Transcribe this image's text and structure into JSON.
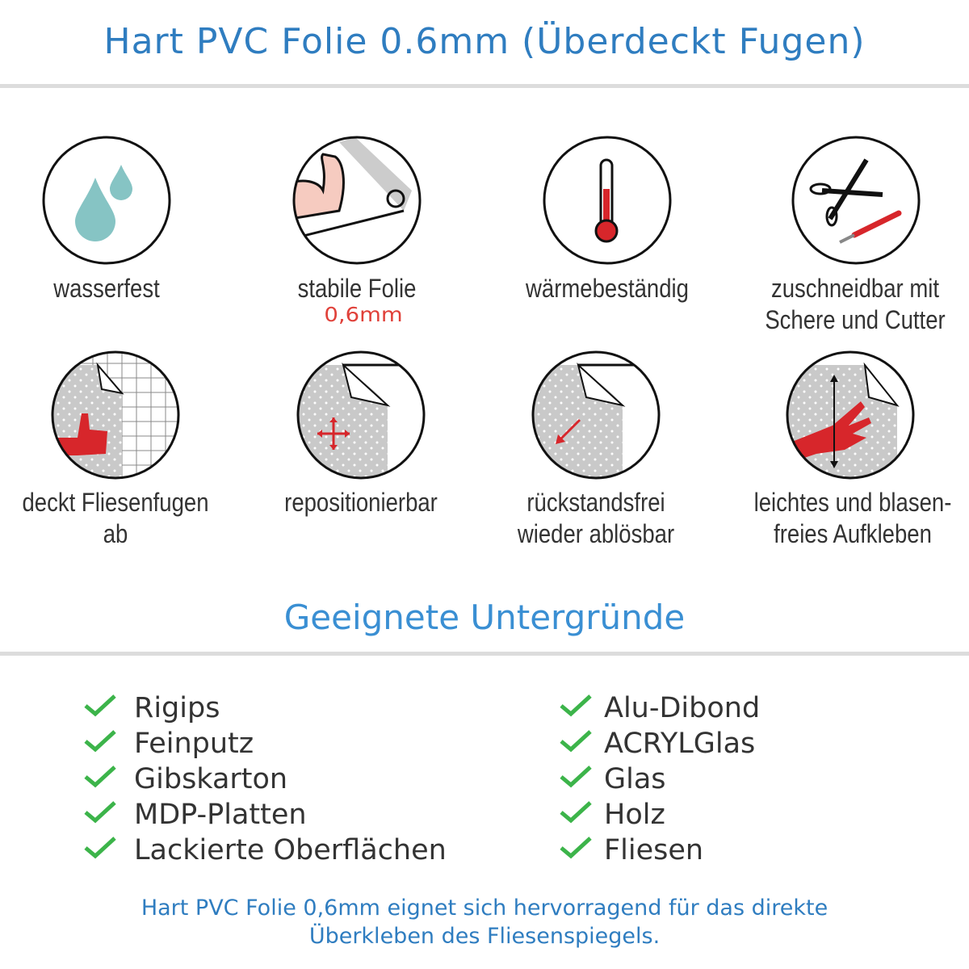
{
  "header": {
    "title": "Hart PVC Folie 0.6mm (Überdeckt Fugen)"
  },
  "features": [
    {
      "icon": "water-drops-icon",
      "lines": [
        "wasserfest"
      ]
    },
    {
      "icon": "strong-arm-icon",
      "lines": [
        "stabile Folie"
      ],
      "sub": "0,6mm"
    },
    {
      "icon": "thermometer-icon",
      "lines": [
        "wärmebeständig"
      ]
    },
    {
      "icon": "scissors-cutter-icon",
      "lines": [
        "zuschneidbar mit",
        "Schere und Cutter"
      ]
    },
    {
      "icon": "thumbs-up-tiles-icon",
      "lines": [
        "deckt Fliesenfugen ab"
      ]
    },
    {
      "icon": "move-arrows-icon",
      "lines": [
        "repositionierbar"
      ]
    },
    {
      "icon": "peel-arrow-icon",
      "lines": [
        "rückstandsfrei",
        "wieder ablösbar"
      ]
    },
    {
      "icon": "hand-smoothing-icon",
      "lines": [
        "leichtes und blasen-",
        "freies Aufkleben"
      ]
    }
  ],
  "surfaces": {
    "title": "Geeignete Untergründe",
    "left": [
      "Rigips",
      "Feinputz",
      "Gibskarton",
      "MDP-Platten",
      "Lackierte Oberflächen"
    ],
    "right": [
      "Alu-Dibond",
      "ACRYLGlas",
      "Glas",
      "Holz",
      "Fliesen"
    ]
  },
  "footer": {
    "line1": "Hart PVC Folie 0,6mm eignet sich hervorragend für das direkte",
    "line2": "Überkleben des Fliesenspiegels."
  },
  "colors": {
    "accent": "#2f7dc0",
    "check": "#3cb44a",
    "red": "#d7262b",
    "drop": "#86c4c4"
  }
}
